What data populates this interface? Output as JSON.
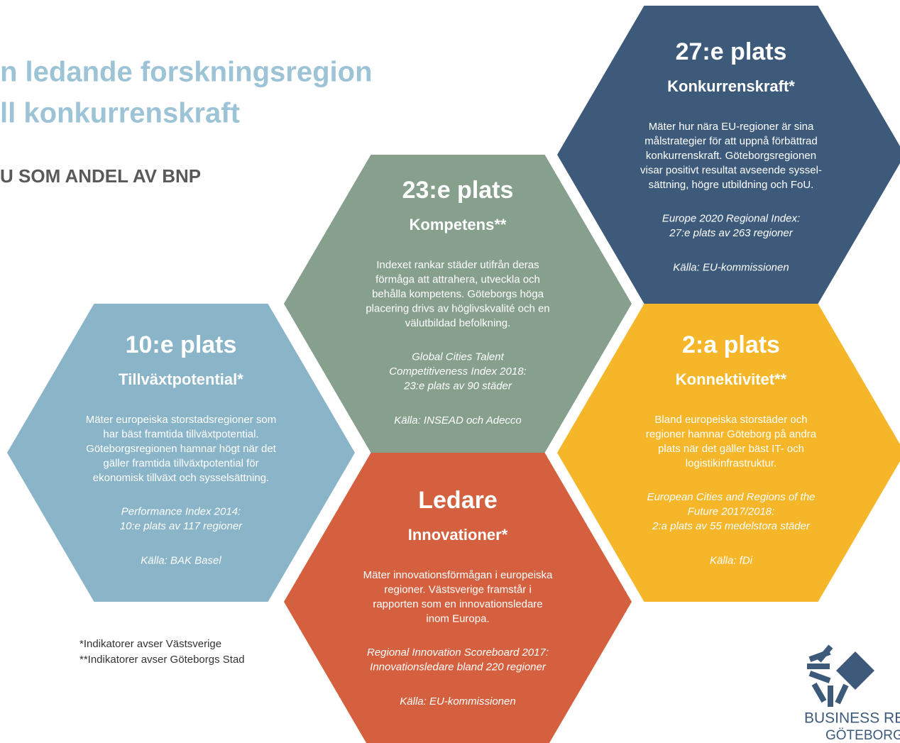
{
  "header": {
    "title_lines": [
      "n ledande forskningsregion",
      "ll konkurrenskraft"
    ],
    "subtitle": "U SOM ANDEL AV BNP"
  },
  "hexagons": [
    {
      "rank": "27:e plats",
      "category": "Konkurrenskraft*",
      "description": [
        "Mäter hur nära EU-regioner är sina",
        "målstrategier för att uppnå förbättrad",
        "konkurrenskraft. Göteborgsregionen",
        "visar positivt resultat avseende syssel-",
        "sättning, högre utbildning och FoU."
      ],
      "source": [
        "Europe 2020 Regional Index:",
        "27:e plats av 263 regioner"
      ],
      "origin": "Källa: EU-kommissionen"
    },
    {
      "rank": "23:e plats",
      "category": "Kompetens**",
      "description": [
        "Indexet rankar städer utifrån deras",
        "förmåga att attrahera, utveckla och",
        "behålla kompetens. Göteborgs höga",
        "placering drivs av höglivskvalité och en",
        "välutbildad befolkning."
      ],
      "source": [
        "Global Cities Talent",
        "Competitiveness Index 2018:",
        "23:e plats av 90 städer"
      ],
      "origin": "Källa: INSEAD och Adecco"
    },
    {
      "rank": "10:e plats",
      "category": "Tillväxtpotential*",
      "description": [
        "Mäter europeiska storstadsregioner som",
        "har bäst framtida tillväxtpotential.",
        "Göteborgsregionen hamnar högt när det",
        "gäller framtida tillväxtpotential för",
        "ekonomisk tillväxt och sysselsättning."
      ],
      "source": [
        "Performance Index 2014:",
        "10:e plats av 117 regioner"
      ],
      "origin": "Källa: BAK Basel"
    },
    {
      "rank": "2:a plats",
      "category": "Konnektivitet**",
      "description": [
        "Bland europeiska storstäder och",
        "regioner hamnar Göteborg på andra",
        "plats när det gäller bäst IT- och",
        "logistikinfrastruktur."
      ],
      "source": [
        "European Cities and Regions of the",
        "Future 2017/2018:",
        "2:a plats av 55 medelstora städer"
      ],
      "origin": "Källa: fDi"
    },
    {
      "rank": "Ledare",
      "category": "Innovationer*",
      "description": [
        "Mäter innovationsförmågan i europeiska",
        "regioner. Västsverige framstår i",
        "rapporten som en innovationsledare",
        "inom Europa."
      ],
      "source": [
        "Regional Innovation Scoreboard 2017:",
        "Innovationsledare bland 220 regioner"
      ],
      "origin": "Källa: EU-kommissionen"
    }
  ],
  "footnotes": [
    "*Indikatorer avser Västsverige",
    "**Indikatorer avser Göteborgs Stad"
  ],
  "logo": {
    "line1": "BUSINESS REGION",
    "line2": "GÖTEBORG"
  }
}
